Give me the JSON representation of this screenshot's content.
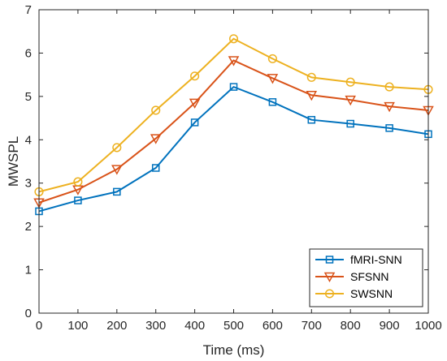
{
  "chart_data": {
    "type": "line",
    "title": "",
    "xlabel": "Time (ms)",
    "ylabel": "MWSPL",
    "x": [
      0,
      100,
      200,
      300,
      400,
      500,
      600,
      700,
      800,
      900,
      1000
    ],
    "xlim": [
      0,
      1000
    ],
    "ylim": [
      0,
      7
    ],
    "xticks": [
      0,
      100,
      200,
      300,
      400,
      500,
      600,
      700,
      800,
      900,
      1000
    ],
    "yticks": [
      0,
      1,
      2,
      3,
      4,
      5,
      6,
      7
    ],
    "grid": false,
    "legend_position": "bottom-right",
    "series": [
      {
        "name": "fMRI-SNN",
        "color": "#0072BD",
        "marker": "square",
        "values": [
          2.35,
          2.6,
          2.8,
          3.35,
          4.4,
          5.22,
          4.87,
          4.46,
          4.37,
          4.27,
          4.13
        ]
      },
      {
        "name": "SFSNN",
        "color": "#D95319",
        "marker": "triangle-down",
        "values": [
          2.55,
          2.85,
          3.32,
          4.03,
          4.85,
          5.83,
          5.42,
          5.03,
          4.92,
          4.77,
          4.68
        ]
      },
      {
        "name": "SWSNN",
        "color": "#EDB120",
        "marker": "circle",
        "values": [
          2.8,
          3.03,
          3.82,
          4.68,
          5.47,
          6.33,
          5.87,
          5.44,
          5.33,
          5.22,
          5.16
        ]
      }
    ]
  }
}
